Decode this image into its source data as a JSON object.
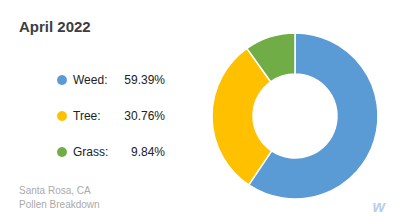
{
  "chart_data": {
    "type": "pie",
    "title": "April 2022",
    "subtitle": "Santa Rosa, CA\nPollen Breakdown",
    "categories": [
      "Weed:",
      "Tree:",
      "Grass:"
    ],
    "values": [
      59.39,
      30.76,
      9.84
    ],
    "value_labels": [
      "59.39%",
      "30.76%",
      "9.84%"
    ],
    "colors": [
      "#5B9BD5",
      "#FFC000",
      "#70AD47"
    ],
    "legend": "left",
    "annotations": [
      "w"
    ]
  }
}
